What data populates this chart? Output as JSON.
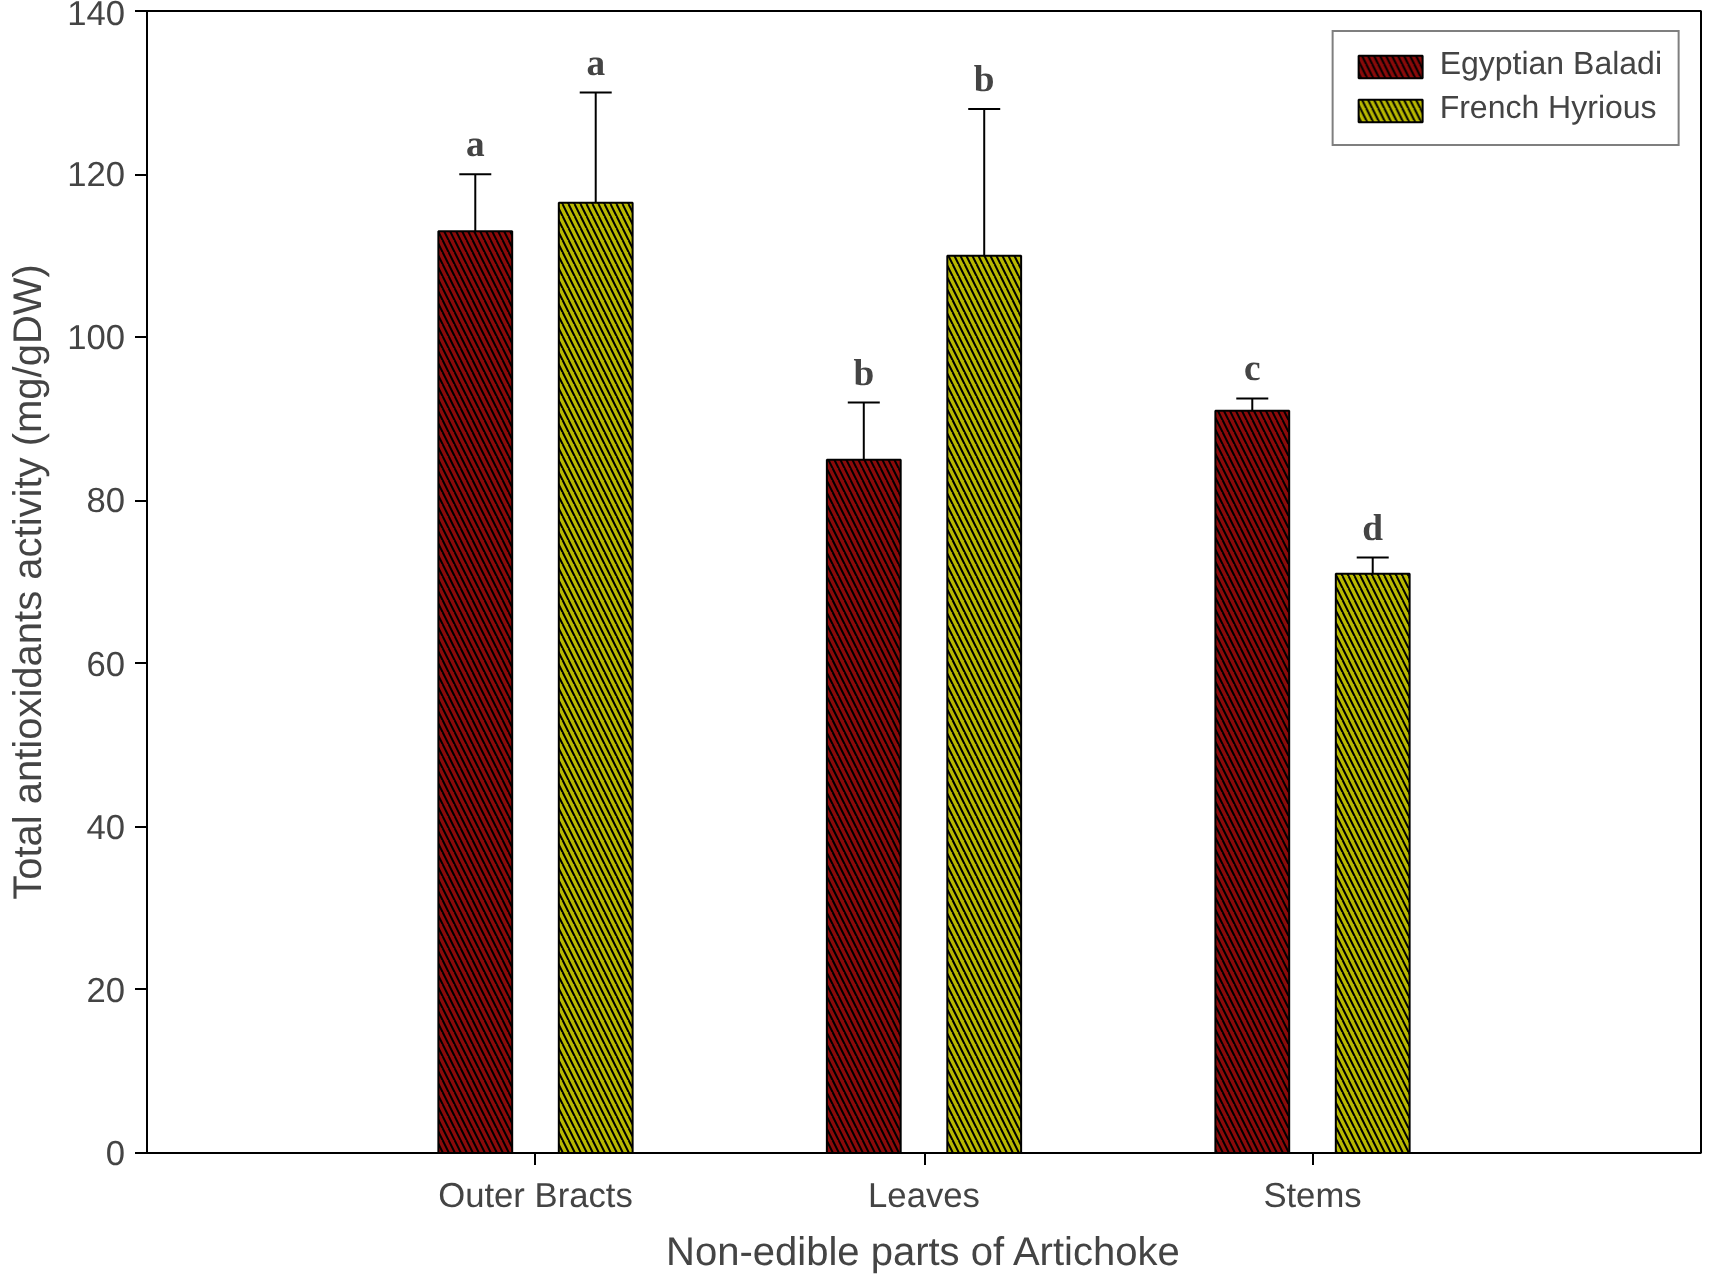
{
  "chart_data": {
    "type": "bar",
    "xlabel": "Non-edible parts of Artichoke",
    "ylabel": "Total antioxidants activity (mg/gDW)",
    "categories": [
      "Outer Bracts",
      "Leaves",
      "Stems"
    ],
    "series": [
      {
        "name": "Egyptian Baladi",
        "color": "#8b0a0a",
        "values": [
          113,
          85,
          91
        ],
        "errors": [
          [
            113,
            120
          ],
          [
            85,
            92
          ],
          [
            91,
            92.5
          ]
        ]
      },
      {
        "name": "French Hyrious",
        "color": "#b8b800",
        "values": [
          116.5,
          110,
          71
        ],
        "errors": [
          [
            116.5,
            130
          ],
          [
            110,
            128
          ],
          [
            71,
            73
          ]
        ]
      }
    ],
    "ylim": [
      0,
      140
    ],
    "yticks": [
      0,
      20,
      40,
      60,
      80,
      100,
      120,
      140
    ],
    "grid": false,
    "legend": "top right",
    "annotations": [
      "a",
      "a",
      "b",
      "b",
      "c",
      "d"
    ]
  }
}
